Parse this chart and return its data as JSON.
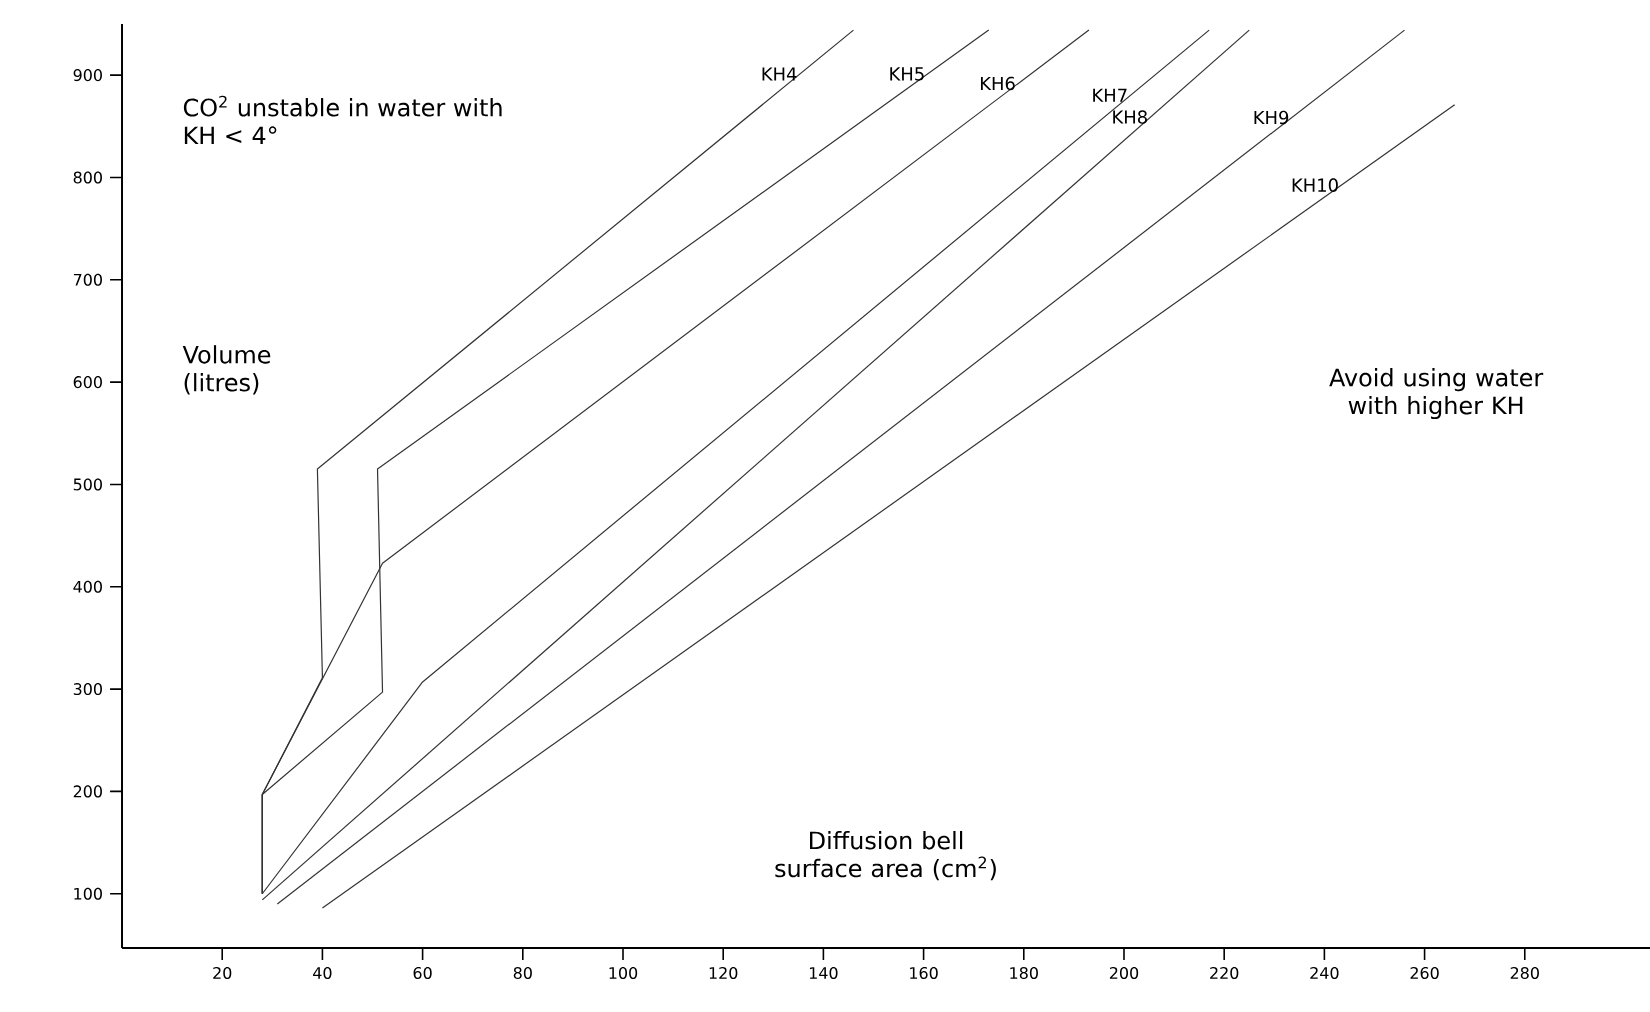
{
  "chart_data": {
    "type": "line",
    "xlabel": "Diffusion bell surface area (cm$^{2}$)",
    "ylabel": "Volume (litres)",
    "xlim": [
      0,
      305
    ],
    "ylim": [
      47,
      950
    ],
    "xticks": [
      20,
      40,
      60,
      80,
      100,
      120,
      140,
      160,
      180,
      200,
      220,
      240,
      260,
      280
    ],
    "yticks": [
      100,
      200,
      300,
      400,
      500,
      600,
      700,
      800,
      900
    ],
    "grid": false,
    "marker": "none",
    "line_style": "solid",
    "annotations": [
      "CO$^{2}$ unstable in water with KH < 4°",
      "Avoid using water with higher KH"
    ],
    "series": [
      {
        "name": "KH4",
        "color": "#333333",
        "x": [
          28,
          28,
          40,
          39,
          146
        ],
        "values": [
          100,
          197,
          311,
          515,
          944
        ]
      },
      {
        "name": "KH5",
        "color": "#333333",
        "x": [
          28,
          28,
          52,
          51,
          173
        ],
        "values": [
          100,
          197,
          297,
          515,
          944
        ]
      },
      {
        "name": "KH6",
        "color": "#333333",
        "x": [
          28,
          28,
          52,
          193
        ],
        "values": [
          100,
          197,
          423,
          944
        ]
      },
      {
        "name": "KH7",
        "color": "#333333",
        "x": [
          28,
          60,
          217
        ],
        "values": [
          100,
          307,
          944
        ]
      },
      {
        "name": "KH8",
        "color": "#333333",
        "x": [
          28,
          225
        ],
        "values": [
          94,
          944
        ]
      },
      {
        "name": "KH9",
        "color": "#333333",
        "x": [
          31,
          256
        ],
        "values": [
          90,
          944
        ]
      },
      {
        "name": "KH10",
        "color": "#333333",
        "x": [
          40,
          266
        ],
        "values": [
          86,
          871
        ]
      }
    ]
  }
}
